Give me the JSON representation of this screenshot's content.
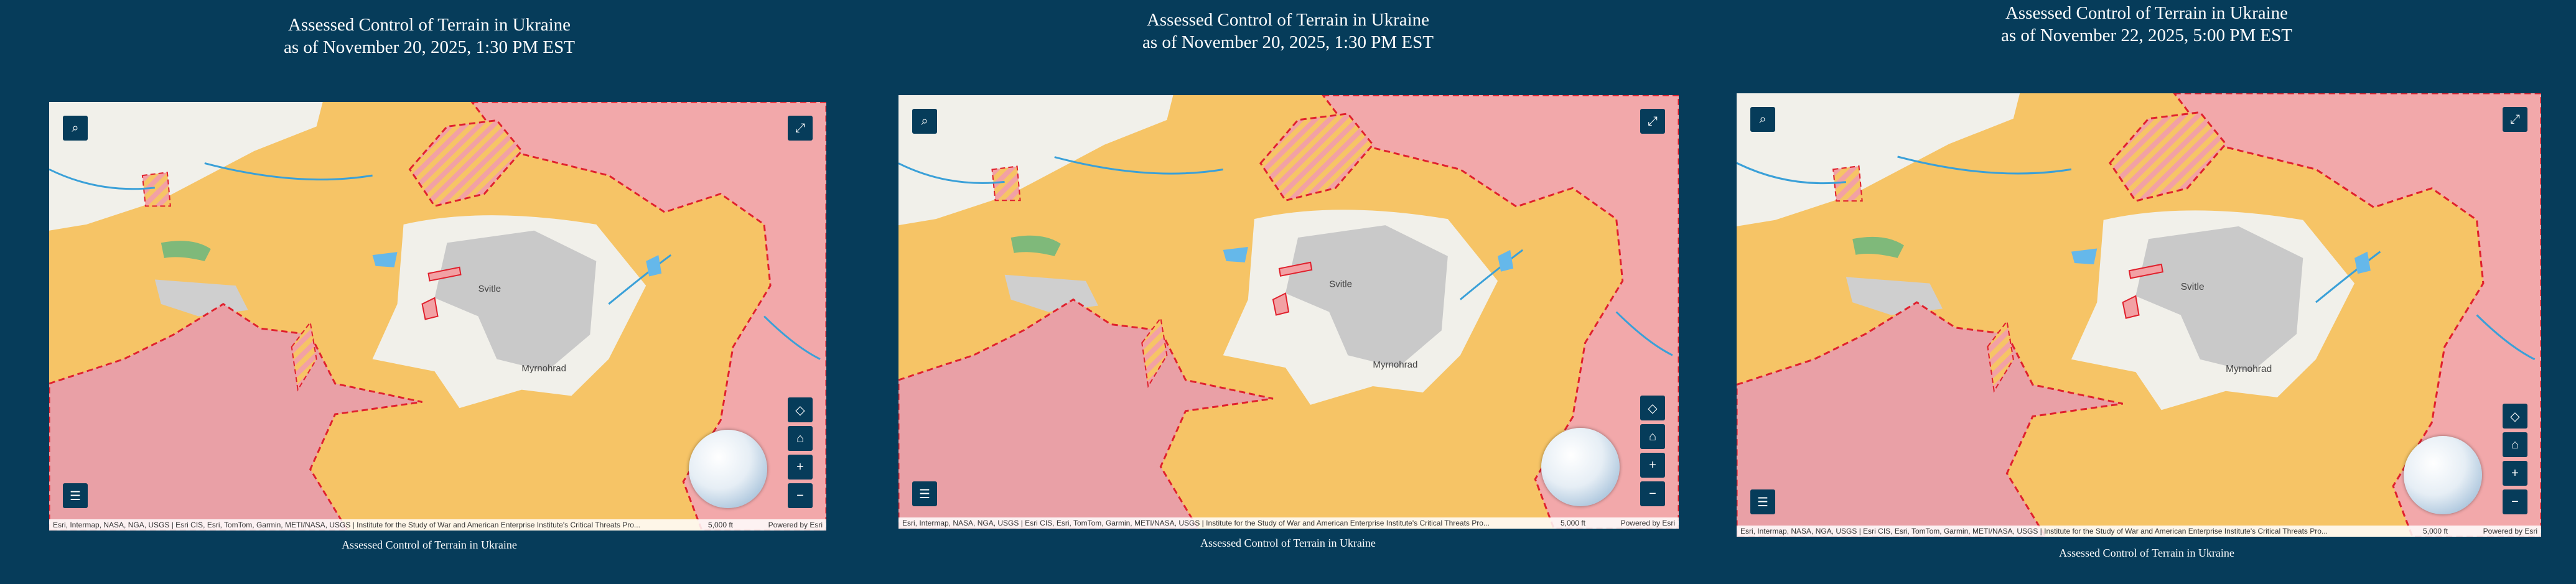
{
  "panels": [
    {
      "title": [
        "Assessed Control of Terrain in Ukraine",
        "as of November 20, 2025, 1:30 PM EST"
      ],
      "places": [
        "Svitle",
        "Myrnohrad"
      ],
      "attribution": "Esri, Intermap, NASA, NGA, USGS | Esri CIS, Esri, TomTom, Garmin, METI/NASA, USGS | Institute for the Study of War and American Enterprise Institute's Critical Threats Pro...",
      "scale": "5,000 ft",
      "powered_by": "Powered by Esri",
      "caption": "Assessed Control of Terrain in Ukraine"
    },
    {
      "title": [
        "Assessed Control of Terrain in Ukraine",
        "as of November 20, 2025, 1:30 PM EST"
      ],
      "places": [
        "Svitle",
        "Myrnohrad"
      ],
      "attribution": "Esri, Intermap, NASA, NGA, USGS | Esri CIS, Esri, TomTom, Garmin, METI/NASA, USGS | Institute for the Study of War and American Enterprise Institute's Critical Threats Pro...",
      "scale": "5,000 ft",
      "powered_by": "Powered by Esri",
      "caption": "Assessed Control of Terrain in Ukraine"
    },
    {
      "title": [
        "Assessed Control of Terrain in Ukraine",
        "as of November 22, 2025, 5:00 PM EST"
      ],
      "places": [
        "Svitle",
        "Myrnohrad"
      ],
      "attribution": "Esri, Intermap, NASA, NGA, USGS | Esri CIS, Esri, TomTom, Garmin, METI/NASA, USGS | Institute for the Study of War and American Enterprise Institute's Critical Threats Pro...",
      "scale": "5,000 ft",
      "powered_by": "Powered by Esri",
      "caption": "Assessed Control of Terrain in Ukraine"
    }
  ]
}
